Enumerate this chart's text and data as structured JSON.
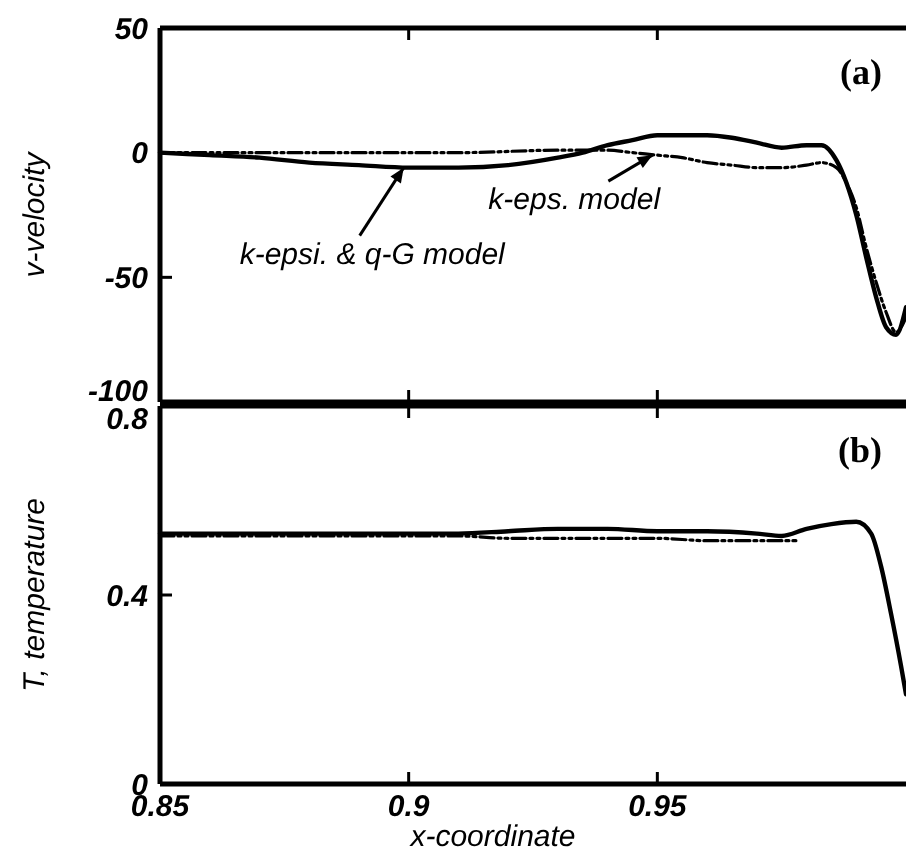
{
  "chart_data": [
    {
      "type": "line",
      "ylabel": "v-velocity",
      "xlim": [
        0.85,
        1.0
      ],
      "xticks": [
        0.85,
        0.9,
        0.95
      ],
      "ylim": [
        -100,
        50
      ],
      "yticks": [
        -100,
        -50,
        0,
        50
      ],
      "tick_labels": "y",
      "grid": false,
      "annotations": [
        "(a)",
        {
          "text": "k-epsi. & q-G model",
          "x": 0.899,
          "y": -6
        },
        {
          "text": "k-eps. model",
          "x": 0.949,
          "y": -1
        }
      ],
      "series": [
        {
          "color": "#000000",
          "line_style": "solid",
          "x": [
            0.85,
            0.86,
            0.87,
            0.88,
            0.89,
            0.9,
            0.91,
            0.92,
            0.93,
            0.935,
            0.94,
            0.945,
            0.95,
            0.955,
            0.96,
            0.965,
            0.97,
            0.975,
            0.98,
            0.983,
            0.986,
            0.988,
            0.99,
            0.992,
            0.994,
            0.996,
            0.998,
            1.0
          ],
          "values": [
            0,
            -1,
            -2,
            -4,
            -5,
            -6,
            -6,
            -5,
            -2,
            0,
            3,
            5,
            7,
            7,
            7,
            6,
            4,
            2,
            3,
            3,
            -3,
            -12,
            -25,
            -42,
            -58,
            -70,
            -73,
            -62
          ]
        },
        {
          "color": "#000000",
          "line_style": "dashed",
          "x": [
            0.85,
            0.87,
            0.89,
            0.91,
            0.93,
            0.94,
            0.945,
            0.95,
            0.955,
            0.96,
            0.965,
            0.97,
            0.975,
            0.98,
            0.983,
            0.986,
            0.988,
            0.99,
            0.992,
            0.994,
            0.996,
            0.998,
            1.0
          ],
          "values": [
            0,
            0,
            0,
            0,
            1,
            1,
            0,
            -1,
            -2,
            -4,
            -5,
            -6,
            -6,
            -5,
            -4,
            -6,
            -12,
            -22,
            -38,
            -52,
            -64,
            -72,
            -66
          ]
        }
      ]
    },
    {
      "type": "line",
      "ylabel": "T, temperature",
      "xlabel": "x-coordinate",
      "xlim": [
        0.85,
        1.0
      ],
      "xticks": [
        0.85,
        0.9,
        0.95
      ],
      "ylim": [
        0,
        0.8
      ],
      "yticks": [
        0,
        0.4,
        0.8
      ],
      "grid": false,
      "annotations": [
        "(b)"
      ],
      "series": [
        {
          "color": "#000000",
          "line_style": "solid",
          "x": [
            0.85,
            0.87,
            0.89,
            0.91,
            0.92,
            0.93,
            0.94,
            0.95,
            0.96,
            0.97,
            0.975,
            0.98,
            0.985,
            0.99,
            0.993,
            0.995,
            0.997,
            0.999,
            1.0
          ],
          "values": [
            0.53,
            0.53,
            0.53,
            0.53,
            0.535,
            0.54,
            0.54,
            0.535,
            0.535,
            0.53,
            0.525,
            0.54,
            0.55,
            0.555,
            0.53,
            0.46,
            0.36,
            0.25,
            0.19
          ]
        },
        {
          "color": "#000000",
          "line_style": "dashed",
          "x": [
            0.85,
            0.87,
            0.89,
            0.91,
            0.92,
            0.93,
            0.94,
            0.95,
            0.96,
            0.97,
            0.978
          ],
          "values": [
            0.525,
            0.525,
            0.525,
            0.525,
            0.52,
            0.52,
            0.52,
            0.52,
            0.515,
            0.515,
            0.515
          ]
        }
      ]
    }
  ]
}
